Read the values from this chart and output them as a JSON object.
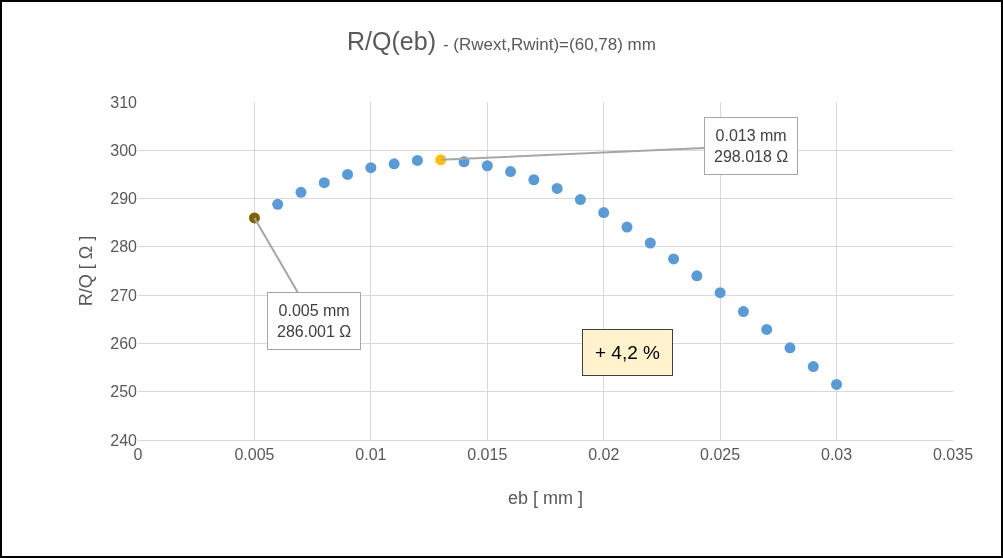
{
  "chart_data": {
    "type": "scatter",
    "title": "R/Q(eb)",
    "subtitle": "- (Rwext,Rwint)=(60,78) mm",
    "xlabel": "eb [ mm ]",
    "ylabel": "R/Q [ Ω ]",
    "x": [
      0.005,
      0.006,
      0.007,
      0.008,
      0.009,
      0.01,
      0.011,
      0.012,
      0.013,
      0.014,
      0.015,
      0.016,
      0.017,
      0.018,
      0.019,
      0.02,
      0.021,
      0.022,
      0.023,
      0.024,
      0.025,
      0.026,
      0.027,
      0.028,
      0.029,
      0.03
    ],
    "series": [
      {
        "colors": [
          "#7f6000",
          "#5b9bd5",
          "#5b9bd5",
          "#5b9bd5",
          "#5b9bd5",
          "#5b9bd5",
          "#5b9bd5",
          "#5b9bd5",
          "#ffc000",
          "#5b9bd5",
          "#5b9bd5",
          "#5b9bd5",
          "#5b9bd5",
          "#5b9bd5",
          "#5b9bd5",
          "#5b9bd5",
          "#5b9bd5",
          "#5b9bd5",
          "#5b9bd5",
          "#5b9bd5",
          "#5b9bd5",
          "#5b9bd5",
          "#5b9bd5",
          "#5b9bd5",
          "#5b9bd5",
          "#5b9bd5"
        ],
        "values": [
          286.001,
          288.8,
          291.3,
          293.3,
          295.0,
          296.4,
          297.2,
          297.9,
          298.018,
          297.6,
          296.8,
          295.6,
          293.9,
          292.1,
          289.8,
          287.1,
          284.1,
          280.8,
          277.5,
          274.0,
          270.5,
          266.6,
          262.9,
          259.1,
          255.2,
          251.5
        ]
      }
    ],
    "xlim": [
      0,
      0.035
    ],
    "xticks": [
      0,
      0.005,
      0.01,
      0.015,
      0.02,
      0.025,
      0.03,
      0.035
    ],
    "ylim": [
      240,
      310
    ],
    "yticks": [
      240,
      250,
      260,
      270,
      280,
      290,
      300,
      310
    ],
    "annotations": [
      {
        "text": "0.013 mm\n298.018 Ω",
        "x": 0.013,
        "y": 298.018
      },
      {
        "text": "0.005 mm\n286.001 Ω",
        "x": 0.005,
        "y": 286.001
      },
      "+ 4,2 %"
    ],
    "grid": true,
    "marker": "circle"
  }
}
